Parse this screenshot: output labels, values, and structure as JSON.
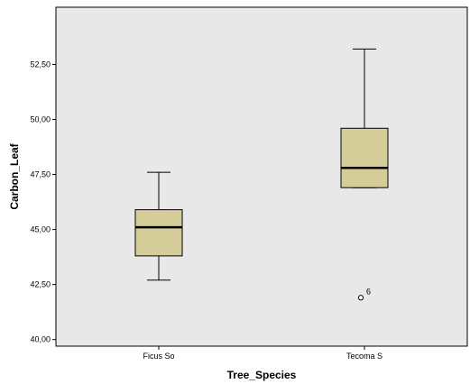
{
  "chart_data": {
    "type": "boxplot",
    "xlabel": "Tree_Species",
    "ylabel": "Carbon_Leaf",
    "ylim": [
      39.7,
      55.1
    ],
    "yticks": [
      40.0,
      42.5,
      45.0,
      47.5,
      50.0,
      52.5
    ],
    "ytick_labels": [
      "40,00",
      "42,50",
      "45,00",
      "47,50",
      "50,00",
      "52,50"
    ],
    "categories": [
      "Ficus So",
      "Tecoma S"
    ],
    "boxes": [
      {
        "category": "Ficus So",
        "whisker_low": 42.7,
        "q1": 43.8,
        "median": 45.1,
        "q3": 45.9,
        "whisker_high": 47.6,
        "outliers": []
      },
      {
        "category": "Tecoma S",
        "whisker_low": 46.9,
        "q1": 46.9,
        "median": 47.8,
        "q3": 49.6,
        "whisker_high": 53.2,
        "outliers": [
          {
            "value": 41.9,
            "label": "6"
          }
        ]
      }
    ],
    "grid": false,
    "colors": {
      "plot_background": "#e8e8e8",
      "box_fill": "#d4cd9a",
      "box_stroke": "#000000"
    }
  }
}
